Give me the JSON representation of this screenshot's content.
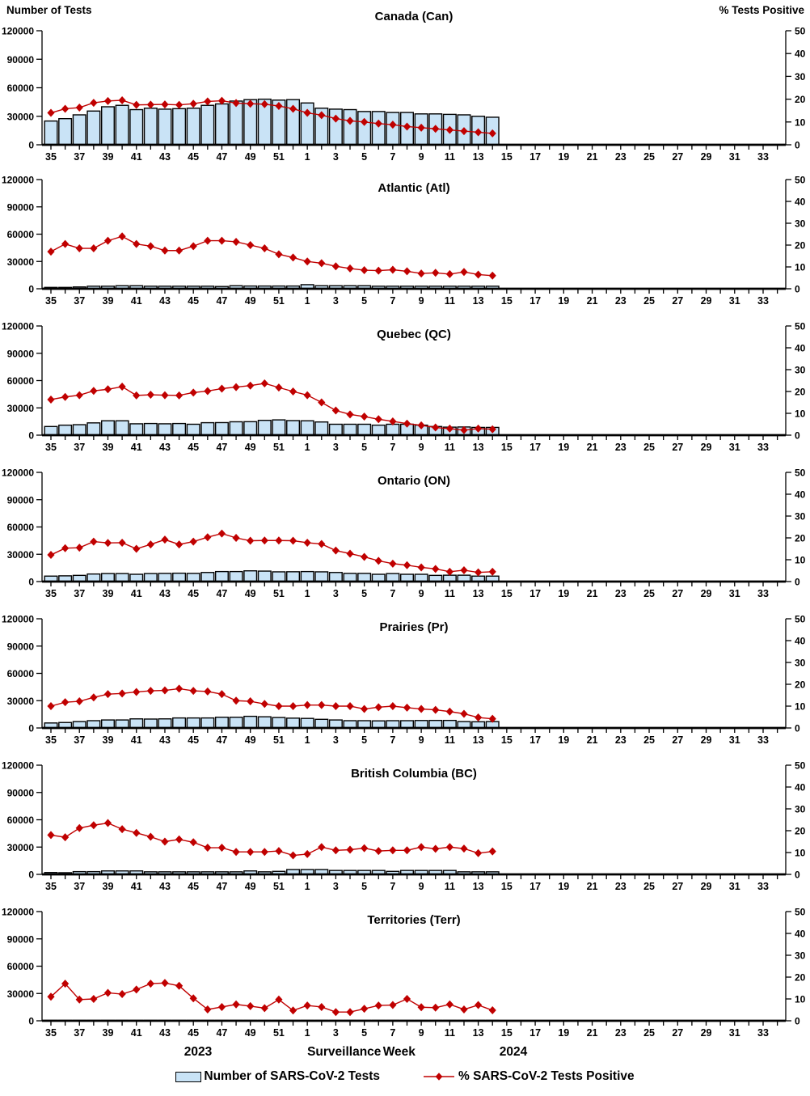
{
  "header": {
    "left_axis_title": "Number of Tests",
    "right_axis_title": "% Tests Positive"
  },
  "footer": {
    "year_left": "2023",
    "axis_title": "Surveillance Week",
    "year_right": "2024"
  },
  "legend": {
    "bars_label": "Number of SARS-CoV-2 Tests",
    "line_label": "% SARS-CoV-2 Tests Positive"
  },
  "colors": {
    "bar_fill": "#C9E3F6",
    "bar_border": "#000000",
    "line": "#C00000",
    "axis": "#000000"
  },
  "chart_data": {
    "type": "bar+line combo, 7 stacked weekly panels",
    "x_axis": {
      "title": "Surveillance Week",
      "weeks": [
        35,
        36,
        37,
        38,
        39,
        40,
        41,
        42,
        43,
        44,
        45,
        46,
        47,
        48,
        49,
        50,
        51,
        52,
        1,
        2,
        3,
        4,
        5,
        6,
        7,
        8,
        9,
        10,
        11,
        12,
        13,
        14,
        15,
        16,
        17,
        18,
        19,
        20,
        21,
        22,
        23,
        24,
        25,
        26,
        27,
        28,
        29,
        30,
        31,
        32,
        33,
        34
      ],
      "labeled_ticks": [
        35,
        37,
        39,
        41,
        43,
        45,
        47,
        49,
        51,
        1,
        3,
        5,
        7,
        9,
        11,
        13,
        15,
        17,
        19,
        21,
        23,
        25,
        27,
        29,
        31,
        33
      ]
    },
    "left_axis": {
      "title": "Number of Tests",
      "lim": [
        0,
        120000
      ],
      "ticks": [
        0,
        30000,
        60000,
        90000,
        120000
      ]
    },
    "right_axis": {
      "title": "% Tests Positive",
      "lim": [
        0,
        50
      ],
      "ticks": [
        0,
        10,
        20,
        30,
        40,
        50
      ]
    },
    "data_weeks": [
      35,
      36,
      37,
      38,
      39,
      40,
      41,
      42,
      43,
      44,
      45,
      46,
      47,
      48,
      49,
      50,
      51,
      52,
      1,
      2,
      3,
      4,
      5,
      6,
      7,
      8,
      9,
      10,
      11,
      12,
      13,
      14
    ],
    "panels": [
      {
        "title": "Canada (Can)",
        "tests": [
          25000,
          27500,
          31500,
          35500,
          40000,
          41500,
          37000,
          38500,
          37500,
          38000,
          38500,
          41500,
          43000,
          46000,
          47500,
          48000,
          47000,
          47500,
          44000,
          38500,
          37500,
          37000,
          35000,
          35000,
          34000,
          34000,
          32500,
          32500,
          32000,
          31500,
          30000,
          29000
        ],
        "pct_positive": [
          14,
          15.8,
          16.3,
          18.4,
          19.2,
          19.5,
          17.5,
          17.6,
          17.7,
          17.5,
          18,
          19,
          19.3,
          18.3,
          18,
          17.8,
          17,
          15.8,
          14,
          13,
          11.5,
          10.5,
          10,
          9.3,
          8.8,
          8,
          7.5,
          7,
          6.5,
          6,
          5.5,
          5
        ]
      },
      {
        "title": "Atlantic (Atl)",
        "tests": [
          1500,
          1500,
          2000,
          2800,
          2800,
          3300,
          3300,
          2800,
          2800,
          2800,
          2800,
          2800,
          2500,
          3300,
          3000,
          3000,
          3000,
          3000,
          4500,
          3300,
          3300,
          3300,
          3300,
          2800,
          2800,
          2800,
          2800,
          2800,
          2800,
          2800,
          2800,
          2800
        ],
        "pct_positive": [
          17,
          20.5,
          18.5,
          18.5,
          22,
          24,
          20.5,
          19.5,
          17.5,
          17.5,
          19.5,
          22,
          22,
          21.5,
          20,
          18.5,
          15.8,
          14.3,
          12.5,
          11.7,
          10.3,
          9.3,
          8.5,
          8.3,
          8.7,
          8,
          7,
          7.3,
          6.7,
          7.7,
          6.5,
          6
        ]
      },
      {
        "title": "Quebec (QC)",
        "tests": [
          9500,
          11000,
          11500,
          13500,
          15800,
          15800,
          12500,
          12800,
          12500,
          12800,
          12000,
          13700,
          13800,
          14700,
          14800,
          16300,
          16800,
          16000,
          15800,
          14500,
          12000,
          12000,
          12000,
          11000,
          12000,
          12000,
          11000,
          9500,
          8800,
          9000,
          8500,
          8500
        ],
        "pct_positive": [
          16.3,
          17.5,
          18.3,
          20.3,
          21,
          22.2,
          18.2,
          18.5,
          18.3,
          18.2,
          19.5,
          20.2,
          21.3,
          22,
          22.7,
          23.7,
          21.8,
          20,
          18.3,
          15,
          11.3,
          9.5,
          8.5,
          7.3,
          6.3,
          5.3,
          4.5,
          3.5,
          3,
          2.3,
          3,
          2.7
        ]
      },
      {
        "title": "Ontario (ON)",
        "tests": [
          6000,
          6300,
          6800,
          8300,
          8800,
          8800,
          8000,
          8800,
          9000,
          9200,
          9000,
          10000,
          11000,
          11000,
          11800,
          11500,
          10700,
          10800,
          11000,
          10700,
          10000,
          9000,
          9000,
          8000,
          8800,
          8000,
          8000,
          6800,
          7000,
          7000,
          6000,
          6000
        ],
        "pct_positive": [
          12.2,
          15.3,
          15.5,
          18.3,
          17.7,
          17.8,
          15,
          17,
          19.2,
          17,
          18.3,
          20.3,
          22,
          20,
          18.7,
          18.8,
          18.8,
          18.7,
          17.8,
          17.2,
          14.2,
          12.8,
          11.3,
          9.5,
          8.2,
          7.5,
          6.5,
          5.8,
          4.5,
          5.2,
          4.2,
          4.5
        ]
      },
      {
        "title": "Prairies (Pr)",
        "tests": [
          5500,
          6000,
          7000,
          8000,
          8800,
          8800,
          10000,
          9800,
          10000,
          11000,
          11000,
          11000,
          11800,
          11800,
          12800,
          12300,
          11500,
          10800,
          10500,
          9500,
          8800,
          8000,
          8000,
          7800,
          8000,
          8000,
          8200,
          8300,
          8300,
          7000,
          6800,
          7000
        ],
        "pct_positive": [
          10,
          11.8,
          12.2,
          14,
          15.5,
          15.8,
          16.5,
          17,
          17.2,
          18,
          17,
          16.7,
          15.5,
          12.5,
          12.2,
          11,
          10,
          10,
          10.5,
          10.5,
          10,
          10,
          8.7,
          9.5,
          10,
          9.3,
          8.7,
          8.3,
          7.5,
          6.5,
          4.8,
          4.2
        ]
      },
      {
        "title": "British Columbia (BC)",
        "tests": [
          2000,
          1800,
          3000,
          3000,
          3800,
          3800,
          3800,
          2800,
          2800,
          2800,
          2800,
          2800,
          2800,
          2800,
          3800,
          2800,
          3300,
          5300,
          5300,
          5300,
          4300,
          4300,
          4300,
          4300,
          3300,
          4300,
          4300,
          4300,
          4300,
          2800,
          2800,
          2800
        ],
        "pct_positive": [
          18,
          17,
          21.2,
          22.5,
          23.5,
          20.7,
          19,
          17.2,
          15,
          16,
          14.7,
          12.2,
          12.2,
          10.3,
          10.3,
          10.3,
          10.7,
          8.7,
          9.3,
          12.5,
          11,
          11.3,
          12,
          10.7,
          11,
          11,
          12.5,
          11.7,
          12.5,
          11.8,
          9.7,
          10.5
        ]
      },
      {
        "title": "Territories (Terr)",
        "tests": [
          400,
          400,
          400,
          400,
          400,
          400,
          400,
          400,
          400,
          400,
          400,
          400,
          400,
          400,
          400,
          400,
          400,
          400,
          400,
          400,
          400,
          400,
          400,
          400,
          400,
          400,
          400,
          400,
          400,
          400,
          400,
          400
        ],
        "pct_positive": [
          11,
          17,
          9.7,
          10,
          12.8,
          12.2,
          14.3,
          17,
          17.3,
          16,
          10.3,
          5.2,
          6.3,
          7.5,
          6.7,
          5.8,
          9.7,
          4.7,
          7,
          6.3,
          4,
          4,
          5.5,
          7,
          7.2,
          10,
          6.2,
          6,
          7.5,
          5.2,
          7.2,
          4.8
        ]
      }
    ]
  }
}
